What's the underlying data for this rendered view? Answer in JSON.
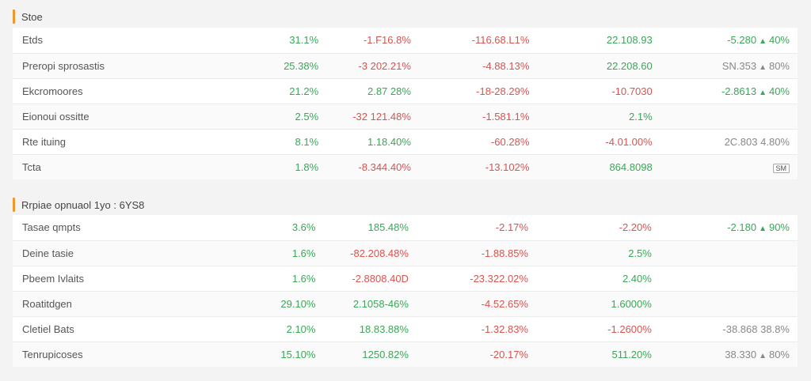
{
  "sections": [
    {
      "title": "Stoe",
      "rows": [
        {
          "label": "Etds",
          "c1": "31.1%",
          "c2": "-1.F16.8%",
          "c3": "-116.68.L1%",
          "c4": "22.108.93",
          "c5": {
            "text": "-5.280",
            "icon": "triangle-up",
            "suffix": "40%",
            "tone": "pos"
          }
        },
        {
          "label": "Preropi sprosastis",
          "c1": "25.38%",
          "c2": "-3 202.21%",
          "c3": "-4.88.13%",
          "c4": "22.208.60",
          "c5": {
            "text": "SN.353",
            "icon": "triangle-up",
            "suffix": "80%",
            "tone": "neu"
          }
        },
        {
          "label": "Ekcromoores",
          "c1": "21.2%",
          "c2": "2.87 28%",
          "c3": "-18-28.29%",
          "c4": "-10.7030",
          "c5": {
            "text": "-2.8613",
            "icon": "triangle-up",
            "suffix": "40%",
            "tone": "pos"
          }
        },
        {
          "label": "Eionoui ossitte",
          "c1": "2.5%",
          "c2": "-32 121.48%",
          "c3": "-1.581.1%",
          "c4": "2.1%",
          "c5": null
        },
        {
          "label": "Rte ituing",
          "c1": "8.1%",
          "c2": "1.18.40%",
          "c3": "-60.28%",
          "c4": "-4.01.00%",
          "c5": {
            "text": "2C.803",
            "icon": "",
            "suffix": "4.80%",
            "tone": "neu"
          }
        },
        {
          "label": "Tcta",
          "c1": "1.8%",
          "c2": "-8.344.40%",
          "c3": "-13.102%",
          "c4": "864.8098",
          "c5": {
            "badge": "SM"
          }
        }
      ]
    },
    {
      "title": "Rrpiae opnuaol 1yo : 6YS8",
      "rows": [
        {
          "label": "Tasae qmpts",
          "c1": "3.6%",
          "c2": "185.48%",
          "c3": "-2.17%",
          "c4": "-2.20%",
          "c5": {
            "text": "-2.180",
            "icon": "triangle-up",
            "suffix": "90%",
            "tone": "pos"
          }
        },
        {
          "label": "Deine tasie",
          "c1": "1.6%",
          "c2": "-82.208.48%",
          "c3": "-1.88.85%",
          "c4": "2.5%",
          "c5": null
        },
        {
          "label": "Pbeem Ivlaits",
          "c1": "1.6%",
          "c2": "-2.8808.40D",
          "c3": "-23.322.02%",
          "c4": "2.40%",
          "c5": null
        },
        {
          "label": "Roatitdgen",
          "c1": "29.10%",
          "c2": "2.1058-46%",
          "c3": "-4.52.65%",
          "c4": "1.6000%",
          "c5": null
        },
        {
          "label": "Cletiel Bats",
          "c1": "2.10%",
          "c2": "18.83.88%",
          "c3": "-1.32.83%",
          "c4": "-1.2600%",
          "c5": {
            "text": "-38.868",
            "icon": "",
            "suffix": "38.8%",
            "tone": "neu"
          }
        },
        {
          "label": "Tenrupicoses",
          "c1": "15.10%",
          "c2": "1250.82%",
          "c3": "-20.17%",
          "c4": "511.20%",
          "c5": {
            "text": "38.330",
            "icon": "triangle-up",
            "suffix": "80%",
            "tone": "neu"
          }
        }
      ]
    }
  ],
  "colors": {
    "positive": "#3aa757",
    "negative": "#d9534f",
    "neutral": "#888888",
    "accent": "#f0962e"
  }
}
